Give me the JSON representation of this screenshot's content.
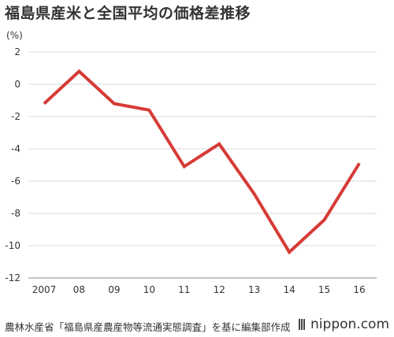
{
  "chart_data": {
    "type": "line",
    "title": "福島県産米と全国平均の価格差推移",
    "ylabel": "(%)",
    "xlabel": "",
    "categories": [
      "2007",
      "08",
      "09",
      "10",
      "11",
      "12",
      "13",
      "14",
      "15",
      "16"
    ],
    "series": [
      {
        "values": [
          -1.2,
          0.8,
          -1.2,
          -1.6,
          -5.1,
          -3.7,
          -6.8,
          -10.4,
          -8.4,
          -4.9
        ]
      }
    ],
    "ylim": [
      -12,
      2
    ],
    "yticks": [
      2,
      0,
      -2,
      -4,
      -6,
      -8,
      -10,
      -12
    ],
    "grid": true,
    "line_color": "#d63b36"
  },
  "footer": {
    "source": "農林水産省「福島県産農産物等流通実態調査」を基に編集部作成",
    "brand": "nippon.com"
  }
}
